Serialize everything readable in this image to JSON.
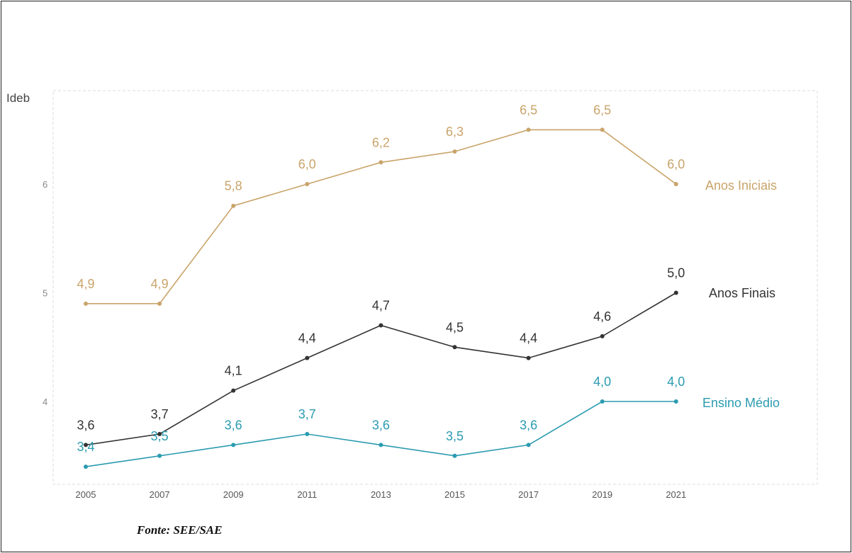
{
  "chart_data": {
    "type": "line",
    "ylabel": "Ideb",
    "x": [
      "2005",
      "2007",
      "2009",
      "2011",
      "2013",
      "2015",
      "2017",
      "2019",
      "2021"
    ],
    "ylim": [
      3.25,
      6.85
    ],
    "yticks": [
      "4",
      "5",
      "6"
    ],
    "grid": false,
    "legend": "labels at line ends (right)",
    "series": [
      {
        "name": "Anos Iniciais",
        "color": "#c9a46a",
        "values": [
          4.9,
          4.9,
          5.8,
          6.0,
          6.2,
          6.3,
          6.5,
          6.5,
          6.0
        ],
        "labels": [
          "4,9",
          "4,9",
          "5,8",
          "6,0",
          "6,2",
          "6,3",
          "6,5",
          "6,5",
          "6,0"
        ]
      },
      {
        "name": "Anos Finais",
        "color": "#333333",
        "values": [
          3.6,
          3.7,
          4.1,
          4.4,
          4.7,
          4.5,
          4.4,
          4.6,
          5.0
        ],
        "labels": [
          "3,6",
          "3,7",
          "4,1",
          "4,4",
          "4,7",
          "4,5",
          "4,4",
          "4,6",
          "5,0"
        ]
      },
      {
        "name": "Ensino Médio",
        "color": "#2b9bb0",
        "values": [
          3.4,
          3.5,
          3.6,
          3.7,
          3.6,
          3.5,
          3.6,
          4.0,
          4.0
        ],
        "labels": [
          "3,4",
          "3,5",
          "3,6",
          "3,7",
          "3,6",
          "3,5",
          "3,6",
          "4,0",
          "4,0"
        ]
      }
    ]
  },
  "source": "Fonte: SEE/SAE"
}
